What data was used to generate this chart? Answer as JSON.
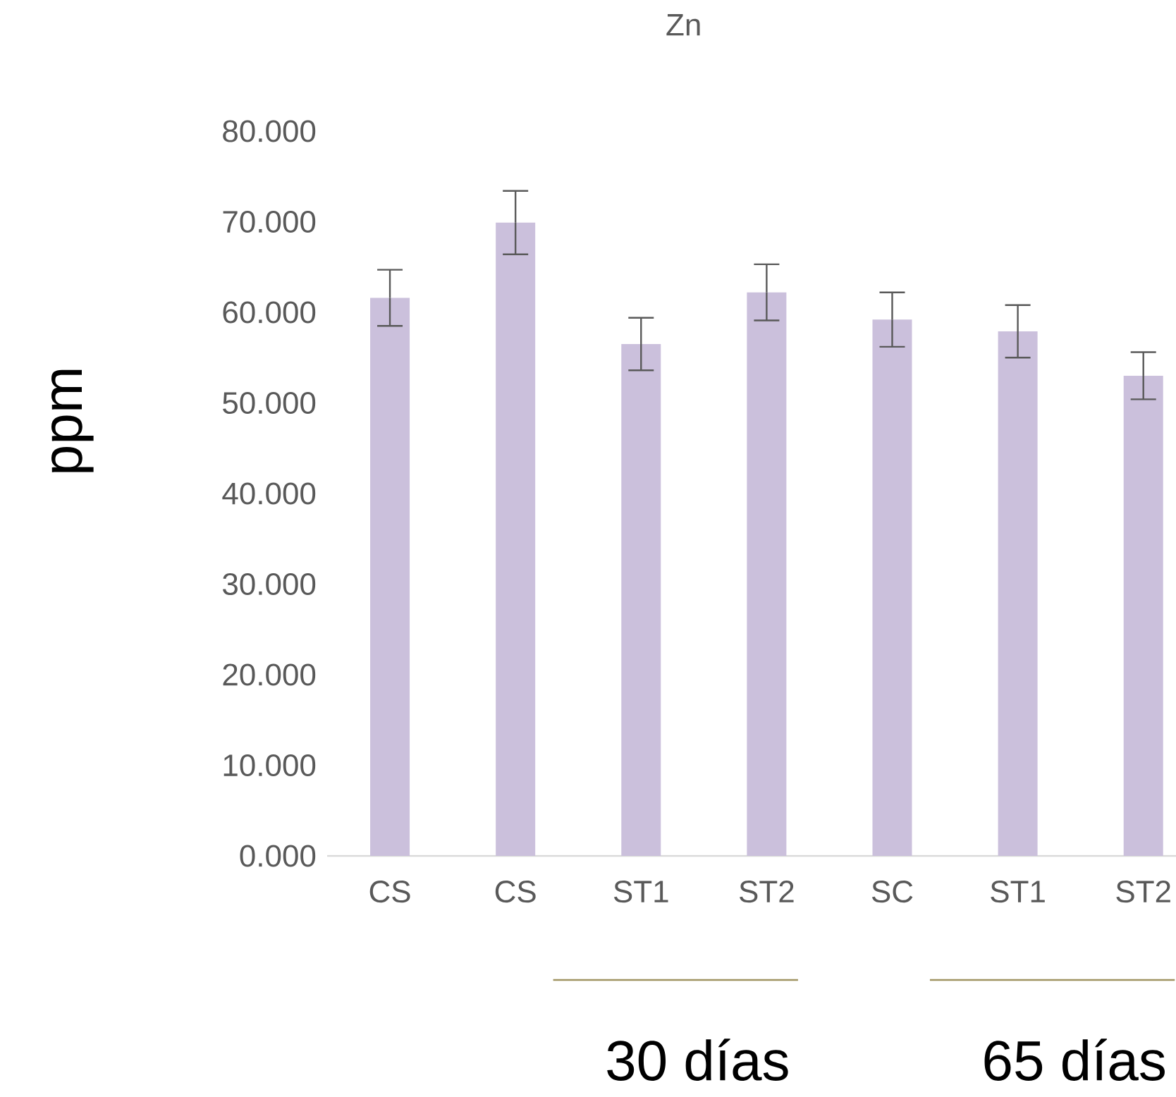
{
  "chart_data": {
    "type": "bar",
    "title": "Zn",
    "ylabel": "ppm",
    "categories": [
      "CS",
      "CS",
      "ST1",
      "ST2",
      "SC",
      "ST1",
      "ST2"
    ],
    "values": [
      61.6,
      69.9,
      56.5,
      62.2,
      59.2,
      57.9,
      53.0
    ],
    "errors": [
      3.1,
      3.5,
      2.9,
      3.1,
      3.0,
      2.9,
      2.6
    ],
    "color": "#cbc0dc",
    "ylim": [
      0,
      80
    ],
    "yticks": [
      {
        "value": 0,
        "label": "0.000"
      },
      {
        "value": 10,
        "label": "10.000"
      },
      {
        "value": 20,
        "label": "20.000"
      },
      {
        "value": 30,
        "label": "30.000"
      },
      {
        "value": 40,
        "label": "40.000"
      },
      {
        "value": 50,
        "label": "50.000"
      },
      {
        "value": 60,
        "label": "60.000"
      },
      {
        "value": 70,
        "label": "70.000"
      },
      {
        "value": 80,
        "label": "80.000"
      }
    ],
    "annotations": [
      "30 días",
      "65 días"
    ]
  }
}
